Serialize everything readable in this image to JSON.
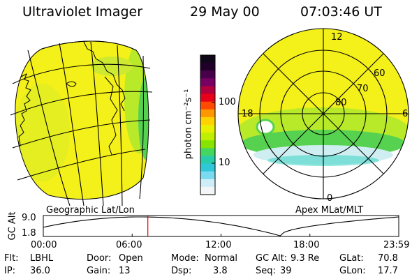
{
  "header": {
    "instrument": "Ultraviolet Imager",
    "date": "29 May 00",
    "time": "07:03:46 UT"
  },
  "colors": {
    "yellow": "#f4f01a",
    "lime": "#b8ea2a",
    "green": "#56d250",
    "cyan": "#3ad4c2",
    "lightblue": "#cfeef2",
    "grid": "#000000",
    "time_marker": "#e00000"
  },
  "colorbar": {
    "label": "photon cm⁻²s⁻¹",
    "ticks": [
      "100",
      "10"
    ],
    "colors_top_to_bottom": [
      "#100818",
      "#200028",
      "#48004a",
      "#780062",
      "#b2003e",
      "#e8001a",
      "#ff4a00",
      "#ff9800",
      "#ffd200",
      "#e8f000",
      "#bfee00",
      "#86e400",
      "#44d660",
      "#28cca8",
      "#30c8d8",
      "#7adaf0",
      "#cdeef6",
      "#f2f6f8"
    ]
  },
  "left_map": {
    "title": "Geographic Lat/Lon"
  },
  "right_map": {
    "title": "Apex MLat/MLT",
    "lat_labels": [
      "80",
      "70",
      "60"
    ],
    "mlt_labels": {
      "top": "12",
      "left": "18",
      "right": "6",
      "bottom": "0"
    }
  },
  "timeline": {
    "ylabel": "GC Alt",
    "y_ticks": [
      "9.0",
      "1.8"
    ],
    "x_ticks": [
      "00:00",
      "06:00",
      "12:00",
      "18:00",
      "23:59"
    ],
    "current_time_hours": 7.06
  },
  "info": {
    "flt": {
      "label": "Flt:",
      "value": "LBHL"
    },
    "ip": {
      "label": "IP:",
      "value": "36.0"
    },
    "door": {
      "label": "Door:",
      "value": "Open"
    },
    "gain": {
      "label": "Gain:",
      "value": "13"
    },
    "mode": {
      "label": "Mode:",
      "value": "Normal"
    },
    "dsp": {
      "label": "Dsp:",
      "value": "3.8"
    },
    "gcalt": {
      "label": "GC Alt:",
      "value": "9.3 Re"
    },
    "seq": {
      "label": "Seq:",
      "value": "39"
    },
    "glat": {
      "label": "GLat:",
      "value": "70.8"
    },
    "glon": {
      "label": "GLon:",
      "value": "17.7"
    }
  }
}
